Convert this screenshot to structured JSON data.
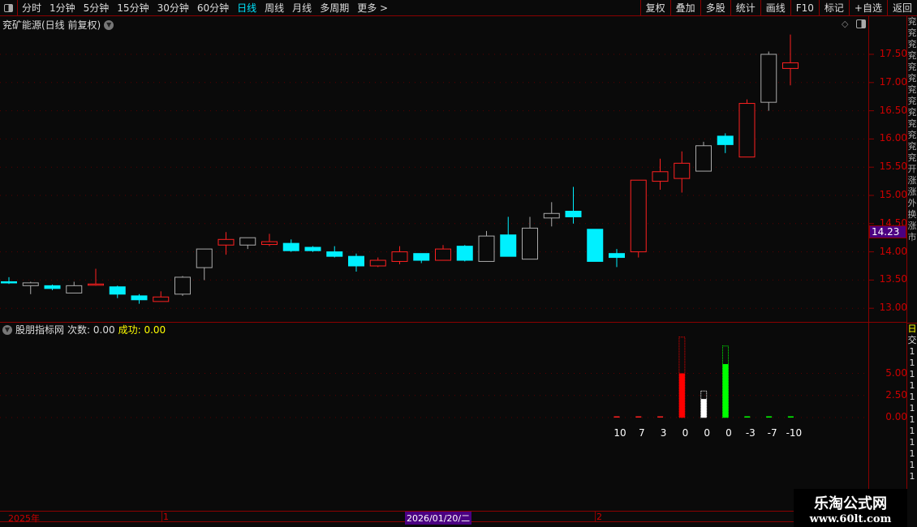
{
  "toolbar": {
    "periods": [
      "分时",
      "1分钟",
      "5分钟",
      "15分钟",
      "30分钟",
      "60分钟",
      "日线",
      "周线",
      "月线",
      "多周期",
      "更多 >"
    ],
    "active": "日线",
    "right_buttons": [
      "复权",
      "叠加",
      "多股",
      "统计",
      "画线",
      "F10",
      "标记",
      "+自选",
      "返回"
    ]
  },
  "chart_title": "兖矿能源(日线 前复权)",
  "colors": {
    "up": "#ff2020",
    "down": "#00f0ff",
    "neutral": "#aaaaaa",
    "axis": "#8b0000",
    "label": "#cc0000"
  },
  "price_axis": {
    "ticks": [
      "17.50",
      "17.00",
      "16.50",
      "16.00",
      "15.50",
      "15.00",
      "14.50",
      "14.00",
      "13.50",
      "13.00"
    ],
    "current": "14.23"
  },
  "candles": [
    {
      "o": 13.47,
      "c": 13.47,
      "h": 13.55,
      "l": 13.43,
      "t": "down"
    },
    {
      "o": 13.4,
      "c": 13.45,
      "h": 13.47,
      "l": 13.25,
      "t": "neutral"
    },
    {
      "o": 13.4,
      "c": 13.35,
      "h": 13.42,
      "l": 13.32,
      "t": "down"
    },
    {
      "o": 13.27,
      "c": 13.4,
      "h": 13.47,
      "l": 13.27,
      "t": "neutral"
    },
    {
      "o": 13.42,
      "c": 13.43,
      "h": 13.7,
      "l": 13.4,
      "t": "up"
    },
    {
      "o": 13.38,
      "c": 13.25,
      "h": 13.4,
      "l": 13.18,
      "t": "down"
    },
    {
      "o": 13.22,
      "c": 13.15,
      "h": 13.25,
      "l": 13.08,
      "t": "down"
    },
    {
      "o": 13.12,
      "c": 13.2,
      "h": 13.3,
      "l": 13.12,
      "t": "up"
    },
    {
      "o": 13.25,
      "c": 13.55,
      "h": 13.57,
      "l": 13.22,
      "t": "neutral"
    },
    {
      "o": 13.72,
      "c": 14.05,
      "h": 14.05,
      "l": 13.5,
      "t": "neutral"
    },
    {
      "o": 14.12,
      "c": 14.22,
      "h": 14.35,
      "l": 13.95,
      "t": "up"
    },
    {
      "o": 14.12,
      "c": 14.25,
      "h": 14.25,
      "l": 14.05,
      "t": "neutral"
    },
    {
      "o": 14.13,
      "c": 14.18,
      "h": 14.32,
      "l": 14.1,
      "t": "up"
    },
    {
      "o": 14.15,
      "c": 14.02,
      "h": 14.22,
      "l": 14.0,
      "t": "down"
    },
    {
      "o": 14.08,
      "c": 14.02,
      "h": 14.1,
      "l": 14.0,
      "t": "down"
    },
    {
      "o": 14.0,
      "c": 13.92,
      "h": 14.1,
      "l": 13.9,
      "t": "down"
    },
    {
      "o": 13.92,
      "c": 13.75,
      "h": 13.97,
      "l": 13.65,
      "t": "down"
    },
    {
      "o": 13.75,
      "c": 13.85,
      "h": 13.9,
      "l": 13.73,
      "t": "up"
    },
    {
      "o": 13.83,
      "c": 14.0,
      "h": 14.1,
      "l": 13.78,
      "t": "up"
    },
    {
      "o": 13.97,
      "c": 13.85,
      "h": 13.97,
      "l": 13.8,
      "t": "down"
    },
    {
      "o": 13.85,
      "c": 14.05,
      "h": 14.12,
      "l": 13.85,
      "t": "up"
    },
    {
      "o": 14.1,
      "c": 13.85,
      "h": 14.12,
      "l": 13.83,
      "t": "down"
    },
    {
      "o": 13.83,
      "c": 14.28,
      "h": 14.37,
      "l": 13.83,
      "t": "neutral"
    },
    {
      "o": 14.3,
      "c": 13.92,
      "h": 14.62,
      "l": 13.92,
      "t": "down"
    },
    {
      "o": 13.87,
      "c": 14.42,
      "h": 14.62,
      "l": 13.87,
      "t": "neutral"
    },
    {
      "o": 14.6,
      "c": 14.68,
      "h": 14.88,
      "l": 14.45,
      "t": "neutral"
    },
    {
      "o": 14.72,
      "c": 14.62,
      "h": 15.15,
      "l": 14.5,
      "t": "down"
    },
    {
      "o": 14.4,
      "c": 13.83,
      "h": 14.4,
      "l": 13.83,
      "t": "down"
    },
    {
      "o": 13.97,
      "c": 13.9,
      "h": 14.05,
      "l": 13.73,
      "t": "down"
    },
    {
      "o": 14.0,
      "c": 15.27,
      "h": 15.27,
      "l": 13.9,
      "t": "up"
    },
    {
      "o": 15.25,
      "c": 15.42,
      "h": 15.65,
      "l": 15.1,
      "t": "up"
    },
    {
      "o": 15.3,
      "c": 15.57,
      "h": 15.78,
      "l": 15.05,
      "t": "up"
    },
    {
      "o": 15.43,
      "c": 15.88,
      "h": 15.95,
      "l": 15.43,
      "t": "neutral"
    },
    {
      "o": 16.05,
      "c": 15.9,
      "h": 16.1,
      "l": 15.75,
      "t": "down"
    },
    {
      "o": 15.68,
      "c": 16.63,
      "h": 16.7,
      "l": 15.68,
      "t": "up"
    },
    {
      "o": 16.65,
      "c": 17.5,
      "h": 17.55,
      "l": 16.5,
      "t": "neutral"
    },
    {
      "o": 17.25,
      "c": 17.35,
      "h": 17.85,
      "l": 16.95,
      "t": "up"
    }
  ],
  "indicator": {
    "name": "股朋指标网",
    "count_label": "次数: 0.00",
    "success_label": "成功: 0.00",
    "ticks": [
      "5.00",
      "2.50",
      "0.00"
    ],
    "bars": [
      {
        "label": "10",
        "value": 0,
        "max": 0,
        "color": "#ff2020"
      },
      {
        "label": "7",
        "value": 0,
        "max": 0,
        "color": "#ff2020"
      },
      {
        "label": "3",
        "value": 0,
        "max": 0,
        "color": "#ff2020"
      },
      {
        "label": "0",
        "value": 5.0,
        "max": 9.1,
        "color": "#ff0000"
      },
      {
        "label": "0",
        "value": 2.1,
        "max": 3.0,
        "color": "#ffffff"
      },
      {
        "label": "0",
        "value": 6.05,
        "max": 8.1,
        "color": "#00ff00"
      },
      {
        "label": "-3",
        "value": 0,
        "max": 0,
        "color": "#00ff00"
      },
      {
        "label": "-7",
        "value": 0,
        "max": 0,
        "color": "#00ff00"
      },
      {
        "label": "-10",
        "value": 0,
        "max": 0,
        "color": "#00ff00"
      }
    ]
  },
  "date_axis": {
    "year": "2025年",
    "m1": "1",
    "current": "2026/01/20/二",
    "m2": "2"
  },
  "watermark": {
    "title": "乐淘公式网",
    "url": "www.60lt.com"
  }
}
